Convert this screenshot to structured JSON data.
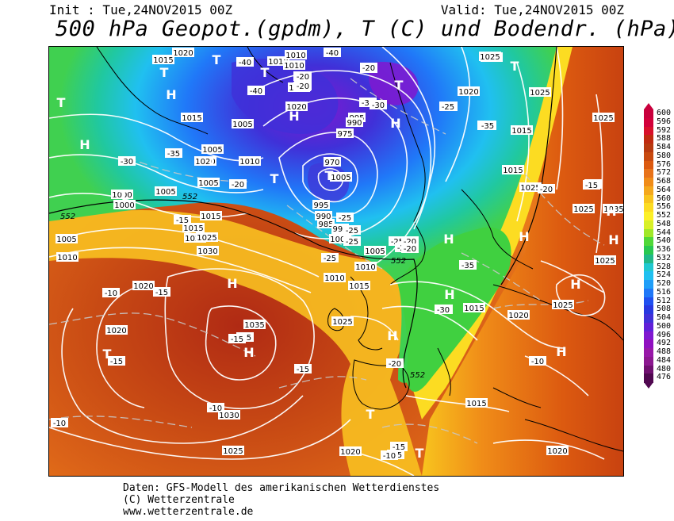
{
  "header": {
    "init": "Init : Tue,24NOV2015 00Z",
    "valid": "Valid: Tue,24NOV2015 00Z",
    "title": "500 hPa Geopot.(gpdm), T (C) und Bodendr. (hPa)"
  },
  "footer": {
    "line1": "Daten: GFS-Modell des amerikanischen Wetterdienstes",
    "line2": "(C) Wetterzentrale",
    "line3": "www.wetterzentrale.de"
  },
  "legend": {
    "levels": [
      "600",
      "596",
      "592",
      "588",
      "584",
      "580",
      "576",
      "572",
      "568",
      "564",
      "560",
      "556",
      "552",
      "548",
      "544",
      "540",
      "536",
      "532",
      "528",
      "524",
      "520",
      "516",
      "512",
      "508",
      "504",
      "500",
      "496",
      "492",
      "488",
      "484",
      "480",
      "476"
    ],
    "colors": [
      "#c8003c",
      "#d2003a",
      "#d8102a",
      "#c02a10",
      "#b83a10",
      "#c84a10",
      "#dc5a10",
      "#e8731a",
      "#f08c18",
      "#f4a81c",
      "#f8c41e",
      "#fcdc22",
      "#fcf028",
      "#d8f028",
      "#a0e828",
      "#50d838",
      "#28c850",
      "#20b888",
      "#20c8d0",
      "#20c0f0",
      "#209ef8",
      "#2078f8",
      "#2050f0",
      "#2838e0",
      "#4030d8",
      "#6020d8",
      "#8018d0",
      "#9010c0",
      "#9818a8",
      "#8c1890",
      "#701070",
      "#500850"
    ]
  },
  "map": {
    "highs": [
      {
        "label": "H"
      },
      {
        "label": "H"
      },
      {
        "label": "H"
      },
      {
        "label": "H"
      },
      {
        "label": "H"
      },
      {
        "label": "H"
      },
      {
        "label": "H"
      },
      {
        "label": "H"
      },
      {
        "label": "H"
      },
      {
        "label": "H"
      },
      {
        "label": "H"
      },
      {
        "label": "H"
      },
      {
        "label": "H"
      },
      {
        "label": "H"
      }
    ],
    "lows": [
      {
        "label": "T"
      },
      {
        "label": "T"
      },
      {
        "label": "T"
      },
      {
        "label": "T"
      },
      {
        "label": "T"
      },
      {
        "label": "T"
      },
      {
        "label": "T"
      },
      {
        "label": "T"
      },
      {
        "label": "T"
      },
      {
        "label": "T"
      },
      {
        "label": "T"
      },
      {
        "label": "T"
      },
      {
        "label": "T"
      }
    ],
    "pressure_labels": [
      "1020",
      "1015",
      "1010",
      "1010",
      "1015",
      "1020",
      "1005",
      "1010",
      "1015",
      "1020",
      "1005",
      "1005",
      "1000",
      "1000",
      "1015",
      "1005",
      "1010",
      "1015",
      "1020",
      "1025",
      "1030",
      "1005",
      "1010",
      "1025",
      "1020",
      "1035",
      "1030",
      "1025",
      "1020",
      "1015",
      "1015",
      "1020",
      "1025",
      "1025",
      "1020",
      "1025",
      "1015",
      "1020",
      "1025",
      "1025",
      "1015",
      "1035",
      "1025",
      "1020",
      "1005",
      "995",
      "990",
      "985",
      "975",
      "970",
      "985",
      "990",
      "995",
      "1000",
      "1005",
      "1010",
      "1015",
      "995",
      "990",
      "1010",
      "1015",
      "1020",
      "1025"
    ],
    "temp_labels": [
      "-40",
      "-40",
      "-40",
      "-40",
      "-40",
      "-30",
      "-30",
      "-30",
      "-25",
      "-35",
      "-35",
      "-30",
      "-20",
      "-20",
      "-20",
      "-15",
      "-25",
      "-25",
      "-20",
      "-20",
      "-35",
      "-30",
      "-25",
      "-25",
      "-15",
      "-10",
      "-15",
      "-15",
      "-10",
      "-10",
      "-15",
      "-15",
      "-10",
      "-20",
      "-15",
      "-15",
      "-10",
      "-25",
      "-20",
      "-15",
      "-20",
      "-20",
      "-20",
      "-25",
      "-30",
      "-35"
    ],
    "geopot_labels": [
      "552",
      "552",
      "552",
      "552"
    ]
  }
}
